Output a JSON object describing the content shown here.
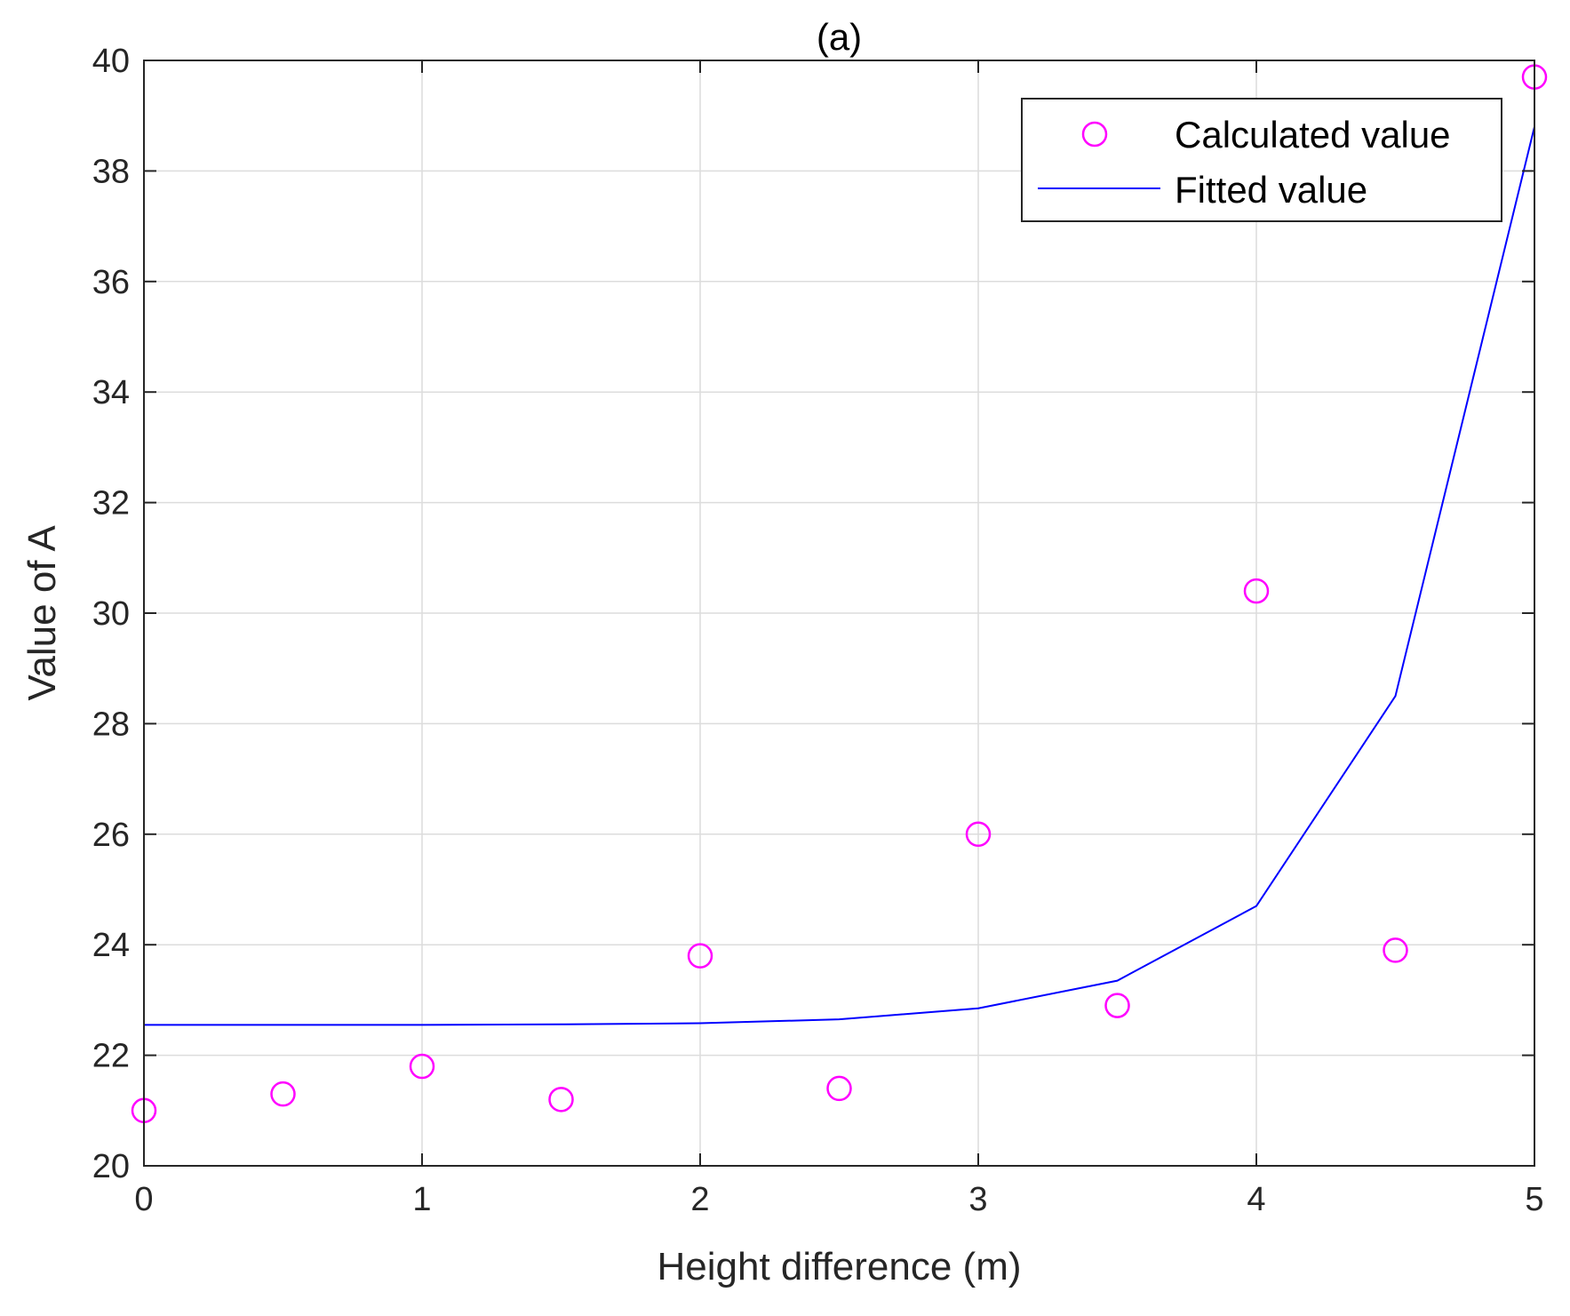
{
  "chart_data": {
    "type": "scatter",
    "title": "(a)",
    "xlabel": "Height difference (m)",
    "ylabel": "Value of A",
    "xlim": [
      0,
      5
    ],
    "ylim": [
      20,
      40
    ],
    "xticks": [
      0,
      1,
      2,
      3,
      4,
      5
    ],
    "yticks": [
      20,
      22,
      24,
      26,
      28,
      30,
      32,
      34,
      36,
      38,
      40
    ],
    "grid": true,
    "legend_position": "top-right",
    "series": [
      {
        "name": "Calculated value",
        "kind": "scatter",
        "marker": "circle",
        "color": "#ff00ff",
        "x": [
          0,
          0.5,
          1,
          1.5,
          2,
          2.5,
          3,
          3.5,
          4,
          4.5,
          5
        ],
        "y": [
          21.0,
          21.3,
          21.8,
          21.2,
          23.8,
          21.4,
          26.0,
          22.9,
          30.4,
          23.9,
          39.7
        ]
      },
      {
        "name": "Fitted value",
        "kind": "line",
        "color": "#0000ff",
        "x": [
          0,
          0.5,
          1,
          1.5,
          2,
          2.5,
          3,
          3.5,
          4,
          4.5,
          5
        ],
        "y": [
          22.55,
          22.55,
          22.55,
          22.56,
          22.58,
          22.65,
          22.85,
          23.35,
          24.7,
          28.5,
          38.8
        ]
      }
    ]
  }
}
